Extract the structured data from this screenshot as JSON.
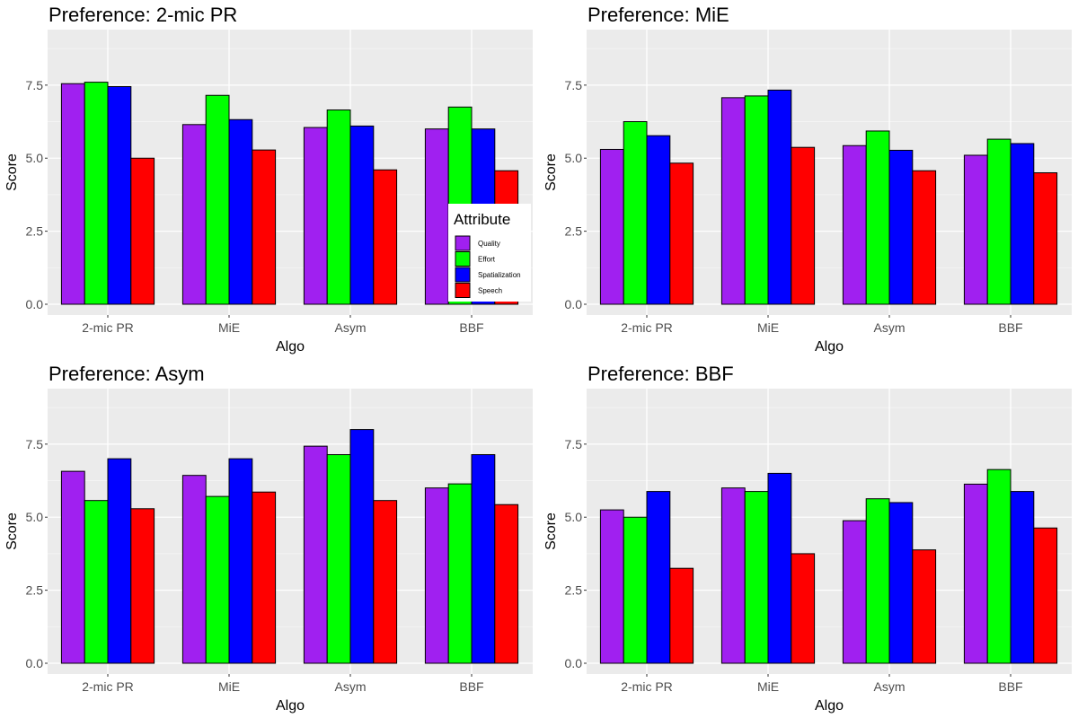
{
  "chart_data": [
    {
      "type": "bar",
      "title": "Preference: 2-mic PR",
      "xlabel": "Algo",
      "ylabel": "Score",
      "ylim": [
        0,
        9.4
      ],
      "yticks": [
        "0.0",
        "2.5",
        "5.0",
        "7.5"
      ],
      "categories": [
        "2-mic PR",
        "MiE",
        "Asym",
        "BBF"
      ],
      "series": [
        {
          "name": "Quality",
          "values": [
            7.55,
            6.15,
            6.05,
            6.0
          ]
        },
        {
          "name": "Effort",
          "values": [
            7.6,
            7.15,
            6.65,
            6.75
          ]
        },
        {
          "name": "Spatialization",
          "values": [
            7.45,
            6.32,
            6.1,
            6.0
          ]
        },
        {
          "name": "Speech",
          "values": [
            5.0,
            5.28,
            4.6,
            4.57
          ]
        }
      ],
      "grid": true
    },
    {
      "type": "bar",
      "title": "Preference: MiE",
      "xlabel": "Algo",
      "ylabel": "Score",
      "ylim": [
        0,
        9.4
      ],
      "yticks": [
        "0.0",
        "2.5",
        "5.0",
        "7.5"
      ],
      "categories": [
        "2-mic PR",
        "MiE",
        "Asym",
        "BBF"
      ],
      "series": [
        {
          "name": "Quality",
          "values": [
            5.3,
            7.07,
            5.43,
            5.1
          ]
        },
        {
          "name": "Effort",
          "values": [
            6.25,
            7.13,
            5.93,
            5.65
          ]
        },
        {
          "name": "Spatialization",
          "values": [
            5.77,
            7.33,
            5.27,
            5.5
          ]
        },
        {
          "name": "Speech",
          "values": [
            4.83,
            5.37,
            4.57,
            4.5
          ]
        }
      ],
      "grid": true
    },
    {
      "type": "bar",
      "title": "Preference: Asym",
      "xlabel": "Algo",
      "ylabel": "Score",
      "ylim": [
        0,
        9.4
      ],
      "yticks": [
        "0.0",
        "2.5",
        "5.0",
        "7.5"
      ],
      "categories": [
        "2-mic PR",
        "MiE",
        "Asym",
        "BBF"
      ],
      "series": [
        {
          "name": "Quality",
          "values": [
            6.57,
            6.43,
            7.43,
            6.0
          ]
        },
        {
          "name": "Effort",
          "values": [
            5.57,
            5.71,
            7.14,
            6.14
          ]
        },
        {
          "name": "Spatialization",
          "values": [
            7.0,
            7.0,
            8.0,
            7.14
          ]
        },
        {
          "name": "Speech",
          "values": [
            5.29,
            5.86,
            5.57,
            5.43
          ]
        }
      ],
      "grid": true
    },
    {
      "type": "bar",
      "title": "Preference: BBF",
      "xlabel": "Algo",
      "ylabel": "Score",
      "ylim": [
        0,
        9.4
      ],
      "yticks": [
        "0.0",
        "2.5",
        "5.0",
        "7.5"
      ],
      "categories": [
        "2-mic PR",
        "MiE",
        "Asym",
        "BBF"
      ],
      "series": [
        {
          "name": "Quality",
          "values": [
            5.25,
            6.0,
            4.88,
            6.13
          ]
        },
        {
          "name": "Effort",
          "values": [
            5.0,
            5.88,
            5.63,
            6.63
          ]
        },
        {
          "name": "Spatialization",
          "values": [
            5.88,
            6.5,
            5.5,
            5.88
          ]
        },
        {
          "name": "Speech",
          "values": [
            3.25,
            3.75,
            3.88,
            4.63
          ]
        }
      ],
      "grid": true
    }
  ],
  "legend": {
    "title": "Attribute",
    "placement": "inside-right (top-left panel)",
    "items": [
      {
        "label": "Quality",
        "color": "#a020f0"
      },
      {
        "label": "Effort",
        "color": "#00ff00"
      },
      {
        "label": "Spatialization",
        "color": "#0000ff"
      },
      {
        "label": "Speech",
        "color": "#ff0000"
      }
    ]
  },
  "colors": {
    "panel_background": "#ebebeb",
    "grid_major": "#ffffff",
    "bar_outline": "#000000"
  }
}
